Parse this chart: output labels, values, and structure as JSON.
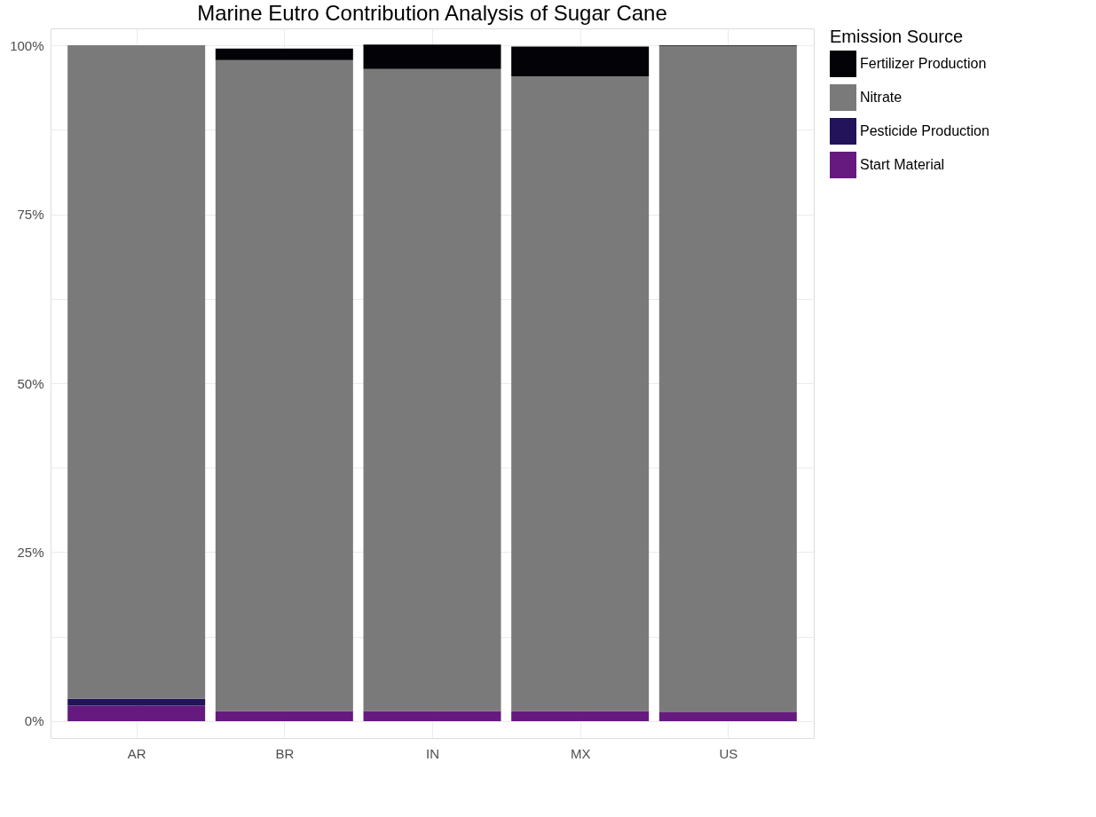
{
  "chart_data": {
    "type": "bar",
    "title": "Marine Eutro Contribution Analysis of Sugar Cane",
    "legend_title": "Emission Source",
    "categories": [
      "AR",
      "BR",
      "IN",
      "MX",
      "US"
    ],
    "stacked": true,
    "series": [
      {
        "name": "Start Material",
        "color": "#661a7f",
        "values": [
          2.3,
          1.5,
          1.5,
          1.5,
          1.3
        ]
      },
      {
        "name": "Pesticide Production",
        "color": "#22135a",
        "values": [
          1.0,
          0,
          0,
          0,
          0
        ]
      },
      {
        "name": "Nitrate",
        "color": "#7a7a7a",
        "values": [
          96.7,
          96.3,
          95.0,
          93.9,
          98.6
        ]
      },
      {
        "name": "Fertilizer Production",
        "color": "#020207",
        "values": [
          0,
          1.7,
          3.6,
          4.4,
          0.1
        ]
      }
    ],
    "ylim": [
      -2.5,
      102.5
    ],
    "yticks": [
      {
        "value": 0,
        "label": "0%"
      },
      {
        "value": 12.5,
        "label": null
      },
      {
        "value": 25,
        "label": "25%"
      },
      {
        "value": 37.5,
        "label": null
      },
      {
        "value": 50,
        "label": "50%"
      },
      {
        "value": 62.5,
        "label": null
      },
      {
        "value": 75,
        "label": "75%"
      },
      {
        "value": 87.5,
        "label": null
      },
      {
        "value": 100,
        "label": "100%"
      }
    ],
    "grid": true,
    "legend": "right"
  }
}
